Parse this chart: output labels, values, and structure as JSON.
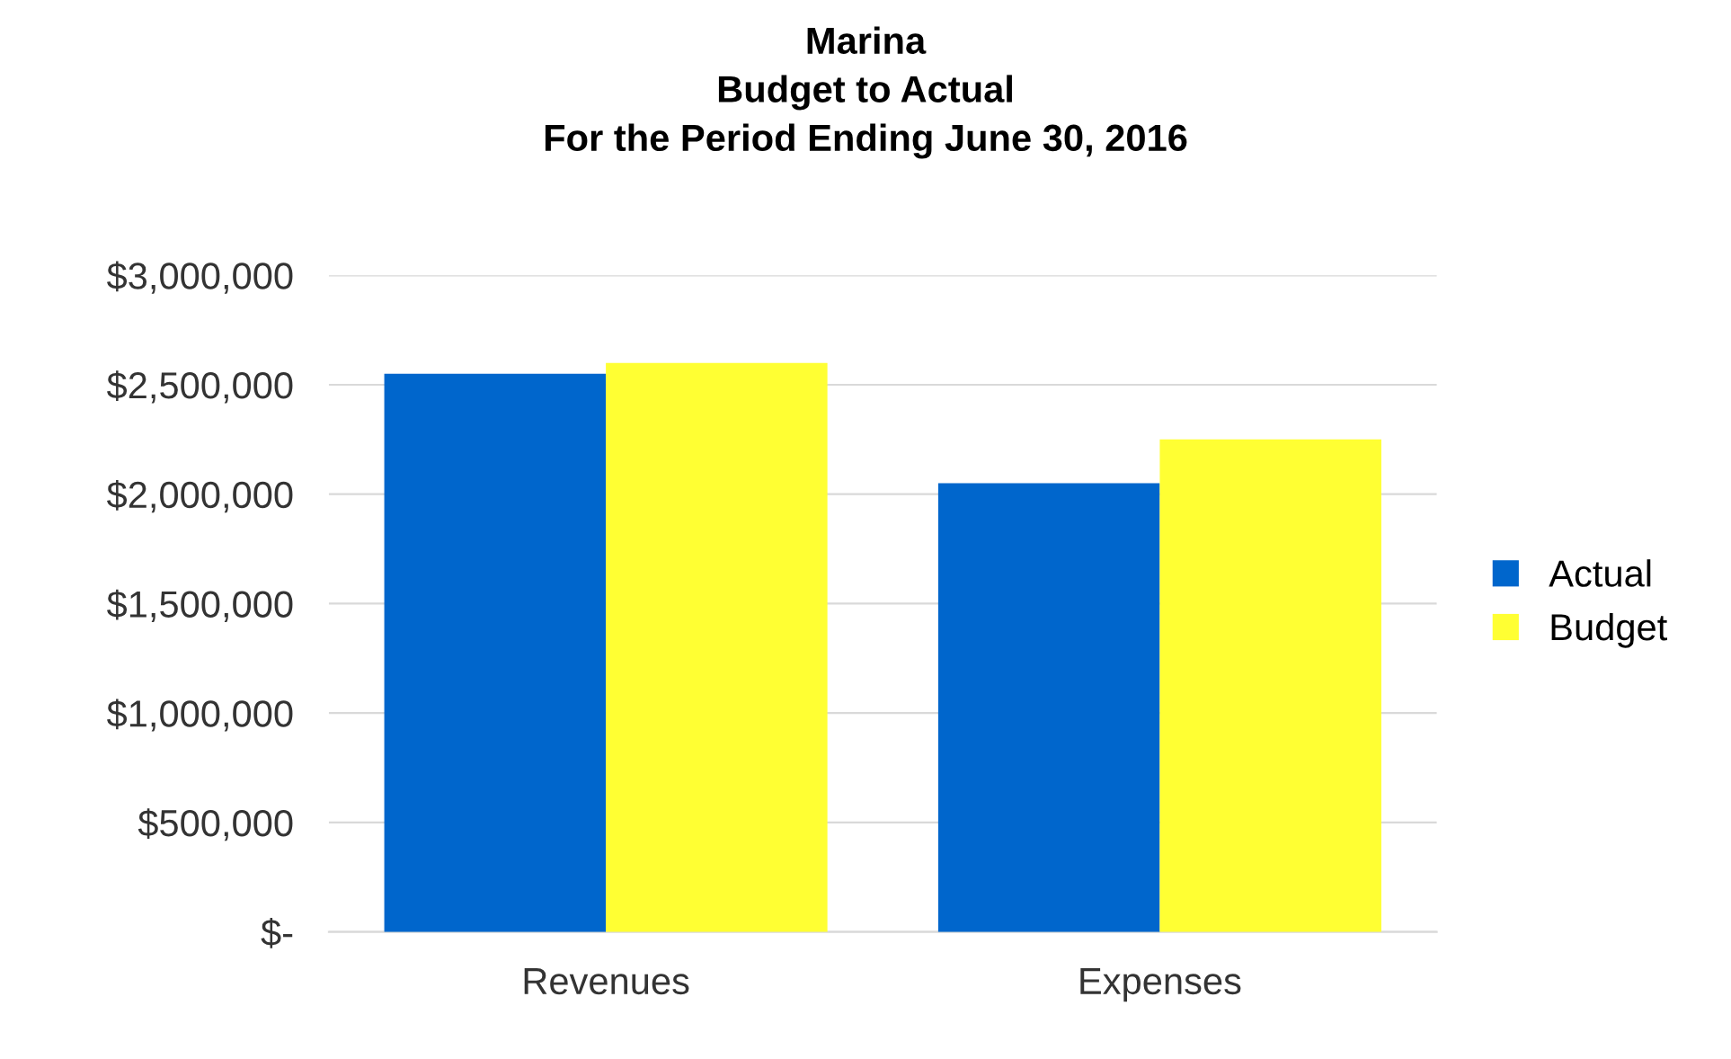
{
  "chart_data": {
    "type": "bar",
    "title": "Marina\nBudget to Actual\nFor the Period Ending June 30, 2016",
    "categories": [
      "Revenues",
      "Expenses"
    ],
    "series": [
      {
        "name": "Actual",
        "color": "#0066cc",
        "values": [
          2550000,
          2050000
        ]
      },
      {
        "name": "Budget",
        "color": "#ffff33",
        "values": [
          2600000,
          2250000
        ]
      }
    ],
    "ylim": [
      0,
      3000000
    ],
    "yticks": [
      {
        "value": 0,
        "label": "$-"
      },
      {
        "value": 500000,
        "label": "$500,000"
      },
      {
        "value": 1000000,
        "label": "$1,000,000"
      },
      {
        "value": 1500000,
        "label": "$1,500,000"
      },
      {
        "value": 2000000,
        "label": "$2,000,000"
      },
      {
        "value": 2500000,
        "label": "$2,500,000"
      },
      {
        "value": 3000000,
        "label": "$3,000,000"
      }
    ],
    "grid": "y",
    "legend": "right"
  }
}
